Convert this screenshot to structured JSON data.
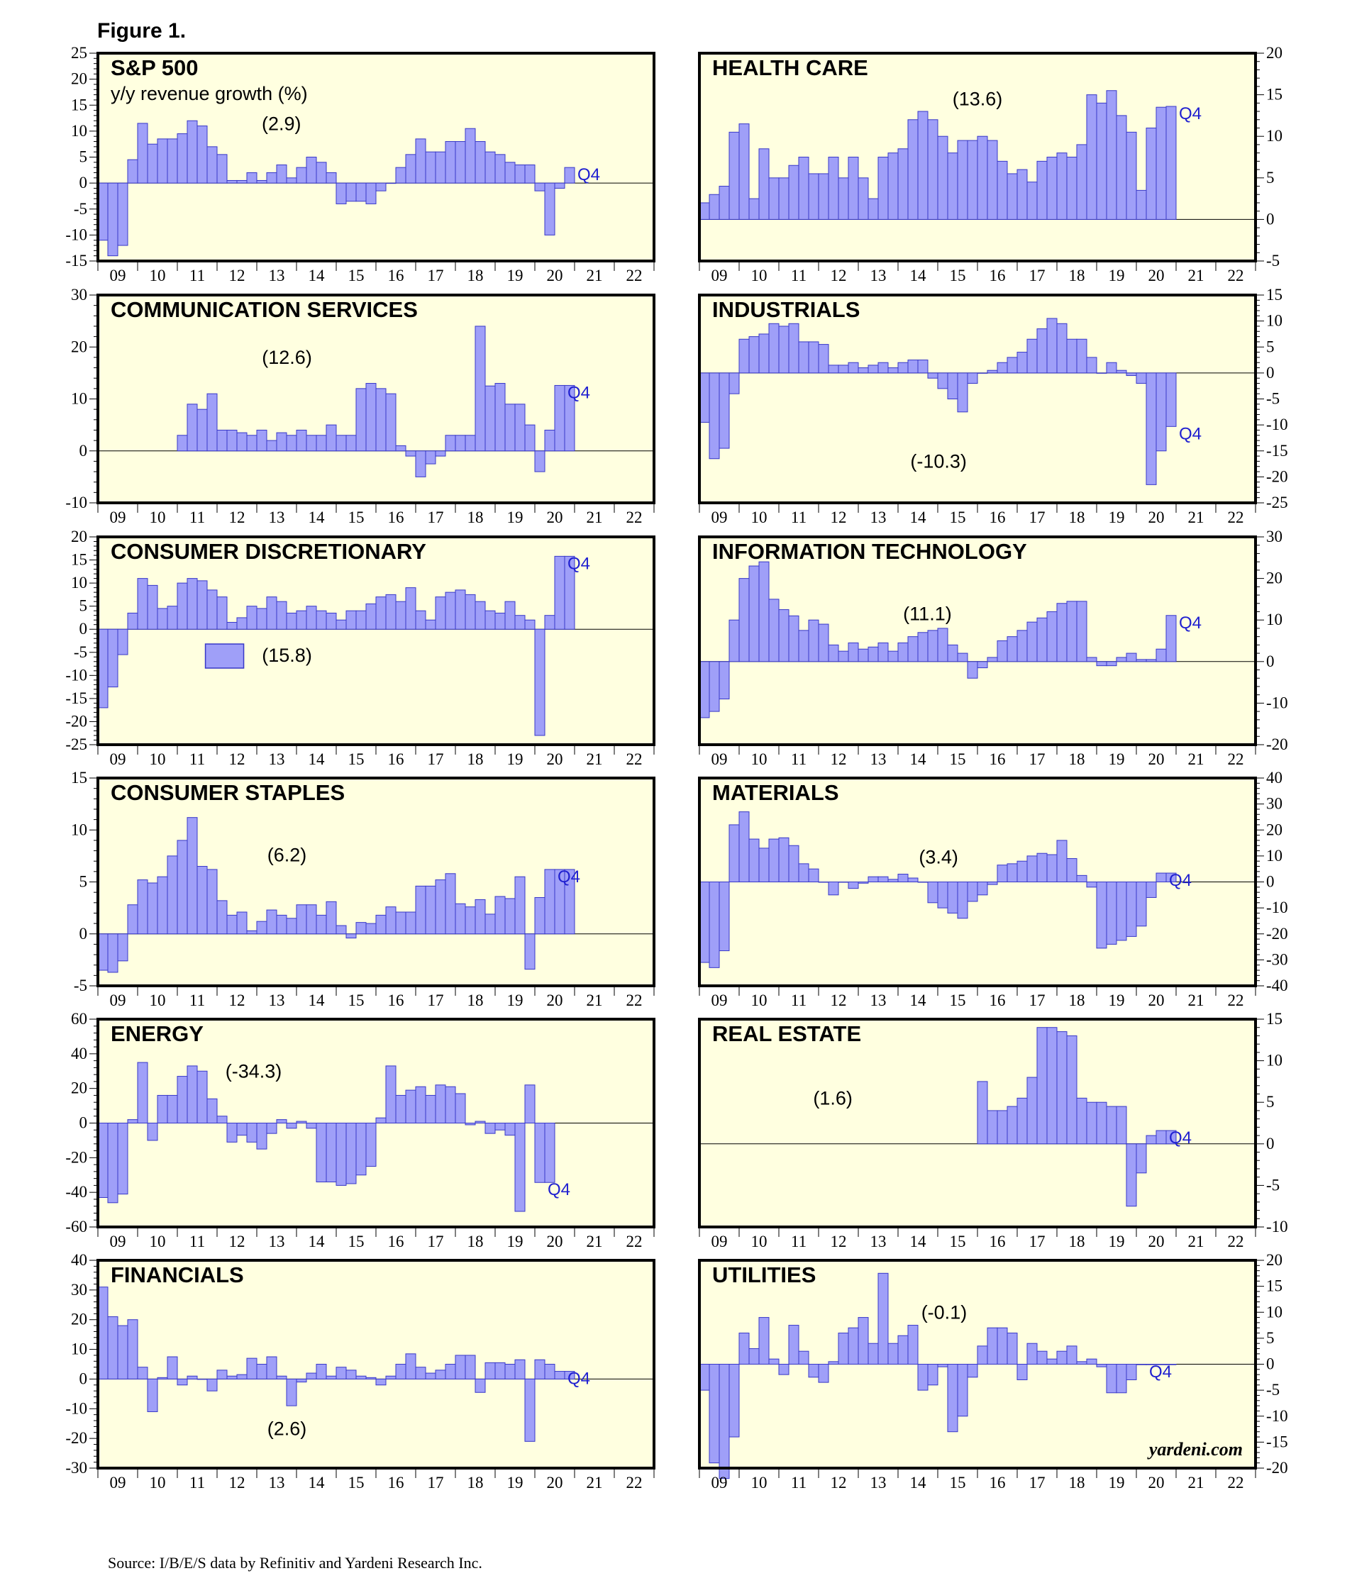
{
  "figure_title": "Figure 1.",
  "source": "Source: I/B/E/S data by Refinitiv and Yardeni Research Inc.",
  "brand": "yardeni.com",
  "colors": {
    "bar": "#9f9ff8",
    "bar_edge": "#3838c8",
    "panel_bg": "#ffffe0",
    "q4_text": "#2020d0"
  },
  "chart_data": [
    {
      "type": "bar",
      "title": "S&P 500",
      "subtitle": "y/y revenue growth (%)",
      "annotation": "(2.9)",
      "marker": "Q4",
      "axis_side": "left",
      "ylim": [
        -15,
        25
      ],
      "yticks": [
        -15,
        -10,
        -5,
        0,
        5,
        10,
        15,
        20,
        25
      ],
      "start_quarter": "2009Q1",
      "x_range": [
        "2009Q1",
        "2022Q4"
      ],
      "xtick_labels": [
        "09",
        "10",
        "11",
        "12",
        "13",
        "14",
        "15",
        "16",
        "17",
        "18",
        "19",
        "20",
        "21",
        "22"
      ],
      "values": [
        -11,
        -14,
        -12,
        4.5,
        11.5,
        7.5,
        8.5,
        8.5,
        9.5,
        12,
        11,
        7,
        5.5,
        0.5,
        0.5,
        2,
        0.5,
        2,
        3.5,
        1,
        3,
        5,
        4,
        2,
        -4,
        -3.5,
        -3.5,
        -4,
        -1.5,
        0,
        3,
        5.5,
        8.5,
        6,
        6,
        8,
        8,
        10.5,
        8,
        6,
        5.5,
        4,
        3.5,
        3.5,
        -1.5,
        -10,
        -1,
        3
      ]
    },
    {
      "type": "bar",
      "title": "HEALTH CARE",
      "annotation": "(13.6)",
      "marker": "Q4",
      "axis_side": "right",
      "ylim": [
        -5,
        20
      ],
      "yticks": [
        -5,
        0,
        5,
        10,
        15,
        20
      ],
      "start_quarter": "2009Q1",
      "x_range": [
        "2009Q1",
        "2022Q4"
      ],
      "xtick_labels": [
        "09",
        "10",
        "11",
        "12",
        "13",
        "14",
        "15",
        "16",
        "17",
        "18",
        "19",
        "20",
        "21",
        "22"
      ],
      "values": [
        2,
        3,
        4,
        10.5,
        11.5,
        2.5,
        8.5,
        5,
        5,
        6.5,
        7.5,
        5.5,
        5.5,
        7.5,
        5,
        7.5,
        5,
        2.5,
        7.5,
        8,
        8.5,
        12,
        13,
        12,
        10,
        8,
        9.5,
        9.5,
        10,
        9.5,
        7,
        5.5,
        6,
        4.5,
        7,
        7.5,
        8,
        7.5,
        9,
        15,
        14,
        15.5,
        12.5,
        10.5,
        3.5,
        11,
        13.5,
        13.6
      ]
    },
    {
      "type": "bar",
      "title": "COMMUNICATION SERVICES",
      "annotation": "(12.6)",
      "marker": "Q4",
      "axis_side": "left",
      "ylim": [
        -10,
        30
      ],
      "yticks": [
        -10,
        0,
        10,
        20,
        30
      ],
      "start_quarter": "2009Q1",
      "x_range": [
        "2009Q1",
        "2022Q4"
      ],
      "xtick_labels": [
        "09",
        "10",
        "11",
        "12",
        "13",
        "14",
        "15",
        "16",
        "17",
        "18",
        "19",
        "20",
        "21",
        "22"
      ],
      "values": [
        null,
        null,
        null,
        null,
        null,
        null,
        null,
        null,
        3,
        9,
        8,
        11,
        4,
        4,
        3.5,
        3,
        4,
        2,
        3.5,
        3,
        4,
        3,
        3,
        5,
        3,
        3,
        12,
        13,
        12,
        11,
        1,
        -1,
        -5,
        -2.5,
        -1,
        3,
        3,
        3,
        24,
        12.5,
        13,
        9,
        9,
        5,
        -4,
        4,
        12.6,
        12.6
      ]
    },
    {
      "type": "bar",
      "title": "INDUSTRIALS",
      "annotation": "(-10.3)",
      "marker": "Q4",
      "axis_side": "right",
      "ylim": [
        -25,
        15
      ],
      "yticks": [
        -25,
        -20,
        -15,
        -10,
        -5,
        0,
        5,
        10,
        15
      ],
      "start_quarter": "2009Q1",
      "x_range": [
        "2009Q1",
        "2022Q4"
      ],
      "xtick_labels": [
        "09",
        "10",
        "11",
        "12",
        "13",
        "14",
        "15",
        "16",
        "17",
        "18",
        "19",
        "20",
        "21",
        "22"
      ],
      "values": [
        -9.5,
        -16.5,
        -14.5,
        -4,
        6.5,
        7,
        7.5,
        9.5,
        9,
        9.5,
        6,
        6,
        5.5,
        1.5,
        1.5,
        2,
        1,
        1.5,
        2,
        1,
        2,
        2.5,
        2.5,
        -1,
        -3,
        -5,
        -7.5,
        -2,
        0,
        0.5,
        2,
        3,
        4,
        6.5,
        8.5,
        10.5,
        9.5,
        6.5,
        6.5,
        3,
        0,
        2,
        0.5,
        -0.5,
        -2,
        -21.5,
        -15,
        -10.3
      ]
    },
    {
      "type": "bar",
      "title": "CONSUMER DISCRETIONARY",
      "annotation": "(15.8)",
      "marker": "Q4",
      "axis_side": "left",
      "ylim": [
        -25,
        20
      ],
      "yticks": [
        -25,
        -20,
        -15,
        -10,
        -5,
        0,
        5,
        10,
        15,
        20
      ],
      "start_quarter": "2009Q1",
      "x_range": [
        "2009Q1",
        "2022Q4"
      ],
      "xtick_labels": [
        "09",
        "10",
        "11",
        "12",
        "13",
        "14",
        "15",
        "16",
        "17",
        "18",
        "19",
        "20",
        "21",
        "22"
      ],
      "values": [
        -17,
        -12.5,
        -5.5,
        3.5,
        11,
        9.5,
        4.5,
        5,
        10,
        11,
        10.5,
        8.5,
        7,
        1.5,
        2.5,
        5,
        4.5,
        7,
        6,
        3.5,
        4,
        5,
        4,
        3.5,
        2,
        4,
        4,
        5.5,
        7,
        7.5,
        6,
        9,
        4,
        2,
        7,
        8,
        8.5,
        7.5,
        6,
        4,
        3.5,
        6,
        3,
        2,
        -23,
        3,
        15.8,
        15.8
      ]
    },
    {
      "type": "bar",
      "title": "INFORMATION TECHNOLOGY",
      "annotation": "(11.1)",
      "marker": "Q4",
      "axis_side": "right",
      "ylim": [
        -20,
        30
      ],
      "yticks": [
        -20,
        -10,
        0,
        10,
        20,
        30
      ],
      "start_quarter": "2009Q1",
      "x_range": [
        "2009Q1",
        "2022Q4"
      ],
      "xtick_labels": [
        "09",
        "10",
        "11",
        "12",
        "13",
        "14",
        "15",
        "16",
        "17",
        "18",
        "19",
        "20",
        "21",
        "22"
      ],
      "values": [
        -13.5,
        -12,
        -9,
        10,
        20,
        23,
        24,
        15,
        12.5,
        11,
        7.5,
        10,
        9,
        4,
        2.5,
        4.5,
        3,
        3.5,
        4.5,
        2.5,
        4.5,
        6,
        7,
        7.5,
        8,
        4,
        2,
        -4,
        -1.5,
        1,
        5,
        6,
        7.5,
        9.5,
        10.5,
        12,
        14,
        14.5,
        14.5,
        1,
        -1,
        -1,
        1,
        2,
        0.5,
        0.5,
        3,
        11.1
      ]
    },
    {
      "type": "bar",
      "title": "CONSUMER STAPLES",
      "annotation": "(6.2)",
      "marker": "Q4",
      "axis_side": "left",
      "ylim": [
        -5,
        15
      ],
      "yticks": [
        -5,
        0,
        5,
        10,
        15
      ],
      "start_quarter": "2009Q1",
      "x_range": [
        "2009Q1",
        "2022Q4"
      ],
      "xtick_labels": [
        "09",
        "10",
        "11",
        "12",
        "13",
        "14",
        "15",
        "16",
        "17",
        "18",
        "19",
        "20",
        "21",
        "22"
      ],
      "values": [
        -3.5,
        -3.7,
        -2.6,
        2.8,
        5.2,
        4.9,
        5.5,
        7.5,
        9,
        11.2,
        6.5,
        6.2,
        3.2,
        1.8,
        2.1,
        0.3,
        1.2,
        2.3,
        1.8,
        1.5,
        2.8,
        2.8,
        1.8,
        3.1,
        0.8,
        -0.4,
        1.1,
        1,
        1.8,
        2.6,
        2.1,
        2.1,
        4.6,
        4.6,
        5.2,
        5.8,
        2.9,
        2.6,
        3.3,
        1.9,
        3.6,
        3.4,
        5.5,
        -3.4,
        3.5,
        6.2,
        6.2,
        6.2
      ]
    },
    {
      "type": "bar",
      "title": "MATERIALS",
      "annotation": "(3.4)",
      "marker": "Q4",
      "axis_side": "right",
      "ylim": [
        -40,
        40
      ],
      "yticks": [
        -40,
        -30,
        -20,
        -10,
        0,
        10,
        20,
        30,
        40
      ],
      "start_quarter": "2009Q1",
      "x_range": [
        "2009Q1",
        "2022Q4"
      ],
      "xtick_labels": [
        "09",
        "10",
        "11",
        "12",
        "13",
        "14",
        "15",
        "16",
        "17",
        "18",
        "19",
        "20",
        "21",
        "22"
      ],
      "values": [
        -31,
        -33,
        -26.5,
        22,
        27,
        16.5,
        13,
        16.5,
        17,
        14,
        7,
        5,
        0,
        -5,
        0,
        -2.5,
        -0.5,
        2,
        2,
        1,
        3,
        1.5,
        0,
        -8,
        -10,
        -12,
        -14,
        -7.5,
        -5,
        -1,
        6.5,
        7,
        8,
        10,
        11,
        10.5,
        16,
        9,
        2.5,
        -2,
        -25.5,
        -24,
        -22.5,
        -21,
        -17,
        -6,
        3.4,
        3.4
      ]
    },
    {
      "type": "bar",
      "title": "ENERGY",
      "annotation": "(-34.3)",
      "marker": "Q4",
      "axis_side": "left",
      "ylim": [
        -60,
        60
      ],
      "yticks": [
        -60,
        -40,
        -20,
        0,
        20,
        40,
        60
      ],
      "start_quarter": "2009Q1",
      "x_range": [
        "2009Q1",
        "2022Q4"
      ],
      "xtick_labels": [
        "09",
        "10",
        "11",
        "12",
        "13",
        "14",
        "15",
        "16",
        "17",
        "18",
        "19",
        "20",
        "21",
        "22"
      ],
      "values": [
        -43,
        -46,
        -41,
        2,
        35,
        -10,
        16,
        16,
        27,
        33,
        30,
        14,
        4,
        -11,
        -7,
        -11,
        -15,
        -6,
        2,
        -3,
        1,
        -3,
        -34,
        -34,
        -36,
        -35,
        -30,
        -25,
        3,
        33,
        16,
        19,
        21,
        16,
        22,
        21,
        17,
        -1,
        1,
        -6,
        -4,
        -7,
        -51,
        22,
        -34.3,
        -34.3,
        null,
        null
      ]
    },
    {
      "type": "bar",
      "title": "REAL ESTATE",
      "annotation": "(1.6)",
      "marker": "Q4",
      "axis_side": "right",
      "ylim": [
        -10,
        15
      ],
      "yticks": [
        -10,
        -5,
        0,
        5,
        10,
        15
      ],
      "start_quarter": "2009Q1",
      "x_range": [
        "2009Q1",
        "2022Q4"
      ],
      "xtick_labels": [
        "09",
        "10",
        "11",
        "12",
        "13",
        "14",
        "15",
        "16",
        "17",
        "18",
        "19",
        "20",
        "21",
        "22"
      ],
      "values": [
        null,
        null,
        null,
        null,
        null,
        null,
        null,
        null,
        null,
        null,
        null,
        null,
        null,
        null,
        null,
        null,
        null,
        null,
        null,
        null,
        null,
        null,
        null,
        null,
        null,
        null,
        null,
        null,
        7.5,
        4,
        4,
        4.5,
        5.5,
        8,
        14,
        14,
        13.5,
        13,
        5.5,
        5,
        5,
        4.5,
        4.5,
        -7.5,
        -3.5,
        1,
        1.6,
        1.6
      ]
    },
    {
      "type": "bar",
      "title": "FINANCIALS",
      "annotation": "(2.6)",
      "marker": "Q4",
      "axis_side": "left",
      "ylim": [
        -30,
        40
      ],
      "yticks": [
        -30,
        -20,
        -10,
        0,
        10,
        20,
        30,
        40
      ],
      "start_quarter": "2009Q1",
      "x_range": [
        "2009Q1",
        "2022Q4"
      ],
      "xtick_labels": [
        "09",
        "10",
        "11",
        "12",
        "13",
        "14",
        "15",
        "16",
        "17",
        "18",
        "19",
        "20",
        "21",
        "22"
      ],
      "values": [
        31,
        21,
        18,
        20,
        4,
        -11,
        0.5,
        7.5,
        -2,
        1,
        0,
        -4,
        3,
        1,
        1.5,
        7,
        5,
        7.5,
        1,
        -9,
        -1,
        2,
        5,
        1,
        4,
        3,
        1,
        0.5,
        -2,
        1,
        5,
        8.5,
        4,
        2,
        3,
        5,
        8,
        8,
        -4.5,
        5.5,
        5.5,
        5,
        6.5,
        -21,
        6.5,
        5,
        2.6,
        2.6
      ]
    },
    {
      "type": "bar",
      "title": "UTILITIES",
      "annotation": "(-0.1)",
      "marker": "Q4",
      "axis_side": "right",
      "ylim": [
        -20,
        20
      ],
      "yticks": [
        -20,
        -15,
        -10,
        -5,
        0,
        5,
        10,
        15,
        20
      ],
      "start_quarter": "2009Q1",
      "x_range": [
        "2009Q1",
        "2022Q4"
      ],
      "xtick_labels": [
        "09",
        "10",
        "11",
        "12",
        "13",
        "14",
        "15",
        "16",
        "17",
        "18",
        "19",
        "20",
        "21",
        "22"
      ],
      "values": [
        -5,
        -19,
        -22,
        -14,
        6,
        3,
        9,
        1,
        -2,
        7.5,
        2.5,
        -2.5,
        -3.5,
        0.5,
        6,
        7,
        9,
        4,
        17.5,
        4,
        5.5,
        7.5,
        -5,
        -4,
        -0.5,
        -13,
        -10,
        -2.5,
        3.5,
        7,
        7,
        6,
        -3,
        4,
        2.5,
        1,
        2.5,
        3.5,
        0.5,
        1,
        -0.5,
        -5.5,
        -5.5,
        -3,
        -0.1,
        -0.1,
        -0.1,
        -0.1
      ]
    }
  ]
}
